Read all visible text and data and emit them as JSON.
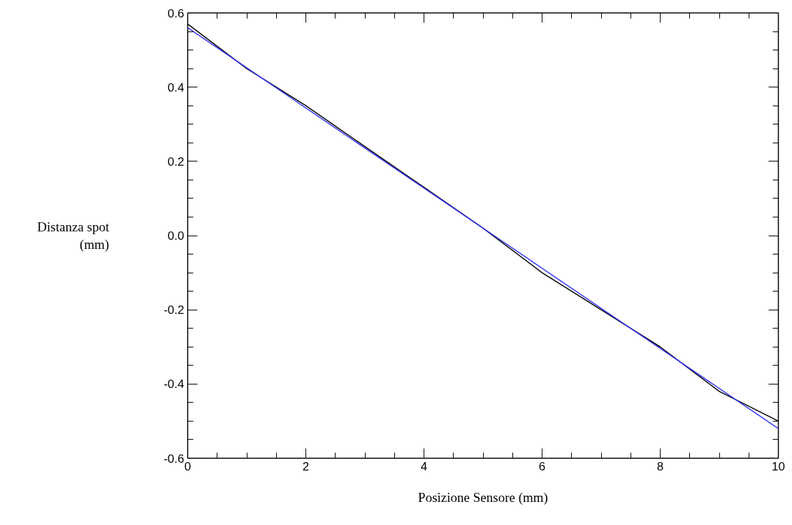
{
  "chart_data": {
    "type": "line",
    "xlabel": "Posizione Sensore (mm)",
    "ylabel": "Distanza spot\n(mm)",
    "x": [
      0,
      1,
      2,
      3,
      4,
      5,
      6,
      7,
      8,
      9,
      10
    ],
    "series": [
      {
        "color": "#000000",
        "values": [
          0.57,
          0.45,
          0.35,
          0.24,
          0.13,
          0.02,
          -0.1,
          -0.2,
          -0.3,
          -0.42,
          -0.5
        ]
      },
      {
        "color": "#3333ff",
        "x": [
          0,
          10
        ],
        "values": [
          0.56,
          -0.52
        ]
      }
    ],
    "xlim": [
      0,
      10
    ],
    "xticks": [
      0,
      2,
      4,
      6,
      8,
      10
    ],
    "ylim": [
      -0.6,
      0.6
    ],
    "yticks": [
      {
        "value": -0.6,
        "label": "-0.6"
      },
      {
        "value": -0.4,
        "label": "-0.4"
      },
      {
        "value": -0.2,
        "label": "-0.2"
      },
      {
        "value": 0,
        "label": "0.0"
      },
      {
        "value": 0.2,
        "label": "0.2"
      },
      {
        "value": 0.4,
        "label": "0.4"
      },
      {
        "value": 0.6,
        "label": "0.6"
      }
    ],
    "grid": false,
    "marker": "none",
    "line_style": "solid"
  }
}
